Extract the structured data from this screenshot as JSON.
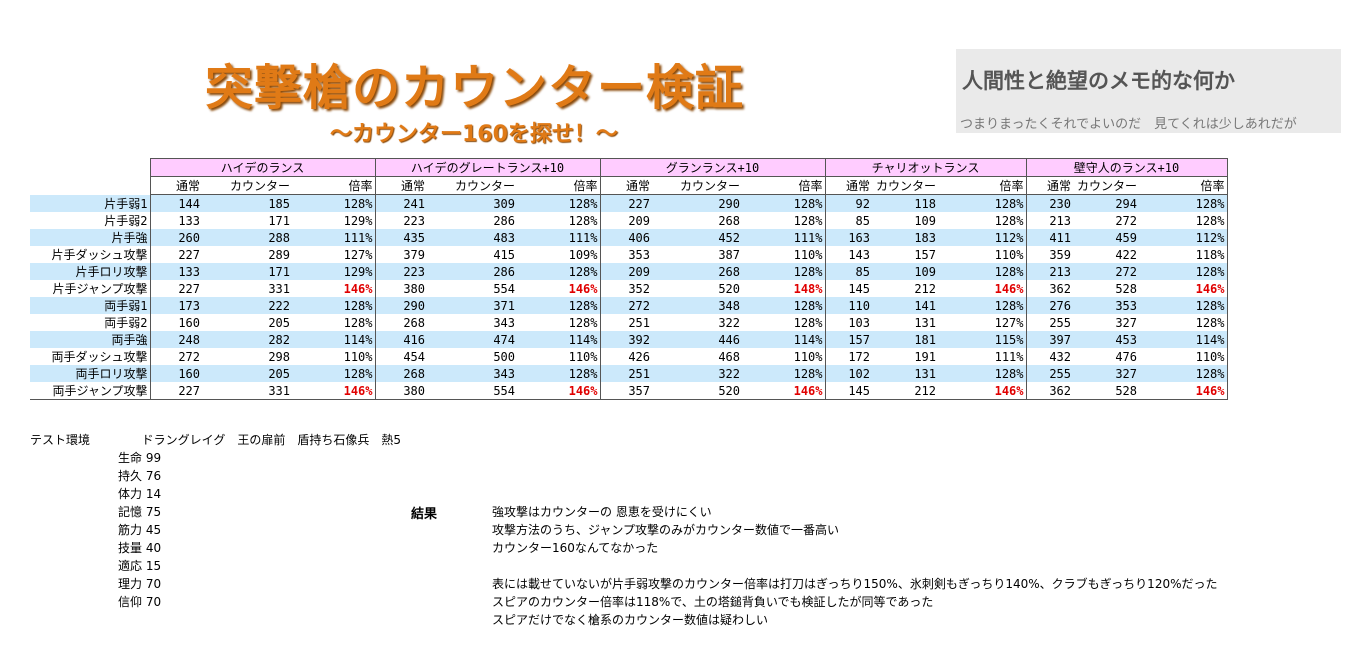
{
  "title": "突撃槍のカウンター検証",
  "subtitle": "～カウンター160を探せ！～",
  "blog": {
    "name": "人間性と絶望のメモ的な何か",
    "tagline": "つまりまったくそれでよいのだ　見てくれは少しあれだが"
  },
  "table": {
    "groups": [
      "ハイデのランス",
      "ハイデのグレートランス+10",
      "グランランス+10",
      "チャリオットランス",
      "壁守人のランス+10"
    ],
    "subheaders": [
      "通常",
      "カウンター",
      "倍率"
    ],
    "rows": [
      {
        "label": "片手弱1",
        "cells": [
          [
            "144",
            "185",
            "128%"
          ],
          [
            "241",
            "309",
            "128%"
          ],
          [
            "227",
            "290",
            "128%"
          ],
          [
            "92",
            "118",
            "128%"
          ],
          [
            "230",
            "294",
            "128%"
          ]
        ]
      },
      {
        "label": "片手弱2",
        "cells": [
          [
            "133",
            "171",
            "129%"
          ],
          [
            "223",
            "286",
            "128%"
          ],
          [
            "209",
            "268",
            "128%"
          ],
          [
            "85",
            "109",
            "128%"
          ],
          [
            "213",
            "272",
            "128%"
          ]
        ]
      },
      {
        "label": "片手強",
        "cells": [
          [
            "260",
            "288",
            "111%"
          ],
          [
            "435",
            "483",
            "111%"
          ],
          [
            "406",
            "452",
            "111%"
          ],
          [
            "163",
            "183",
            "112%"
          ],
          [
            "411",
            "459",
            "112%"
          ]
        ]
      },
      {
        "label": "片手ダッシュ攻撃",
        "cells": [
          [
            "227",
            "289",
            "127%"
          ],
          [
            "379",
            "415",
            "109%"
          ],
          [
            "353",
            "387",
            "110%"
          ],
          [
            "143",
            "157",
            "110%"
          ],
          [
            "359",
            "422",
            "118%"
          ]
        ]
      },
      {
        "label": "片手ロリ攻撃",
        "cells": [
          [
            "133",
            "171",
            "129%"
          ],
          [
            "223",
            "286",
            "128%"
          ],
          [
            "209",
            "268",
            "128%"
          ],
          [
            "85",
            "109",
            "128%"
          ],
          [
            "213",
            "272",
            "128%"
          ]
        ]
      },
      {
        "label": "片手ジャンプ攻撃",
        "cells": [
          [
            "227",
            "331",
            "146%"
          ],
          [
            "380",
            "554",
            "146%"
          ],
          [
            "352",
            "520",
            "148%"
          ],
          [
            "145",
            "212",
            "146%"
          ],
          [
            "362",
            "528",
            "146%"
          ]
        ]
      },
      {
        "label": "両手弱1",
        "cells": [
          [
            "173",
            "222",
            "128%"
          ],
          [
            "290",
            "371",
            "128%"
          ],
          [
            "272",
            "348",
            "128%"
          ],
          [
            "110",
            "141",
            "128%"
          ],
          [
            "276",
            "353",
            "128%"
          ]
        ]
      },
      {
        "label": "両手弱2",
        "cells": [
          [
            "160",
            "205",
            "128%"
          ],
          [
            "268",
            "343",
            "128%"
          ],
          [
            "251",
            "322",
            "128%"
          ],
          [
            "103",
            "131",
            "127%"
          ],
          [
            "255",
            "327",
            "128%"
          ]
        ]
      },
      {
        "label": "両手強",
        "cells": [
          [
            "248",
            "282",
            "114%"
          ],
          [
            "416",
            "474",
            "114%"
          ],
          [
            "392",
            "446",
            "114%"
          ],
          [
            "157",
            "181",
            "115%"
          ],
          [
            "397",
            "453",
            "114%"
          ]
        ]
      },
      {
        "label": "両手ダッシュ攻撃",
        "cells": [
          [
            "272",
            "298",
            "110%"
          ],
          [
            "454",
            "500",
            "110%"
          ],
          [
            "426",
            "468",
            "110%"
          ],
          [
            "172",
            "191",
            "111%"
          ],
          [
            "432",
            "476",
            "110%"
          ]
        ]
      },
      {
        "label": "両手ロリ攻撃",
        "cells": [
          [
            "160",
            "205",
            "128%"
          ],
          [
            "268",
            "343",
            "128%"
          ],
          [
            "251",
            "322",
            "128%"
          ],
          [
            "102",
            "131",
            "128%"
          ],
          [
            "255",
            "327",
            "128%"
          ]
        ]
      },
      {
        "label": "両手ジャンプ攻撃",
        "cells": [
          [
            "227",
            "331",
            "146%"
          ],
          [
            "380",
            "554",
            "146%"
          ],
          [
            "357",
            "520",
            "146%"
          ],
          [
            "145",
            "212",
            "146%"
          ],
          [
            "362",
            "528",
            "146%"
          ]
        ]
      }
    ]
  },
  "env": {
    "label": "テスト環境",
    "value": "ドラングレイグ　王の扉前　盾持ち石像兵　熱5",
    "stats": [
      "生命 99",
      "持久 76",
      "体力 14",
      "記憶 75",
      "筋力 45",
      "技量 40",
      "適応 15",
      "理力 70",
      "信仰 70"
    ]
  },
  "result": {
    "label": "結果",
    "lines": [
      "強攻撃はカウンターの 恩恵を受けにくい",
      "攻撃方法のうち、ジャンプ攻撃のみがカウンター数値で一番高い",
      "カウンター160なんてなかった",
      "表には載せていないが片手弱攻撃のカウンター倍率は打刀はぎっちり150%、氷刺剣もぎっちり140%、クラブもぎっちり120%だった",
      "スピアのカウンター倍率は118%で、土の塔鎚背負いでも検証したが同等であった",
      "スピアだけでなく槍系のカウンター数値は疑わしい"
    ]
  }
}
